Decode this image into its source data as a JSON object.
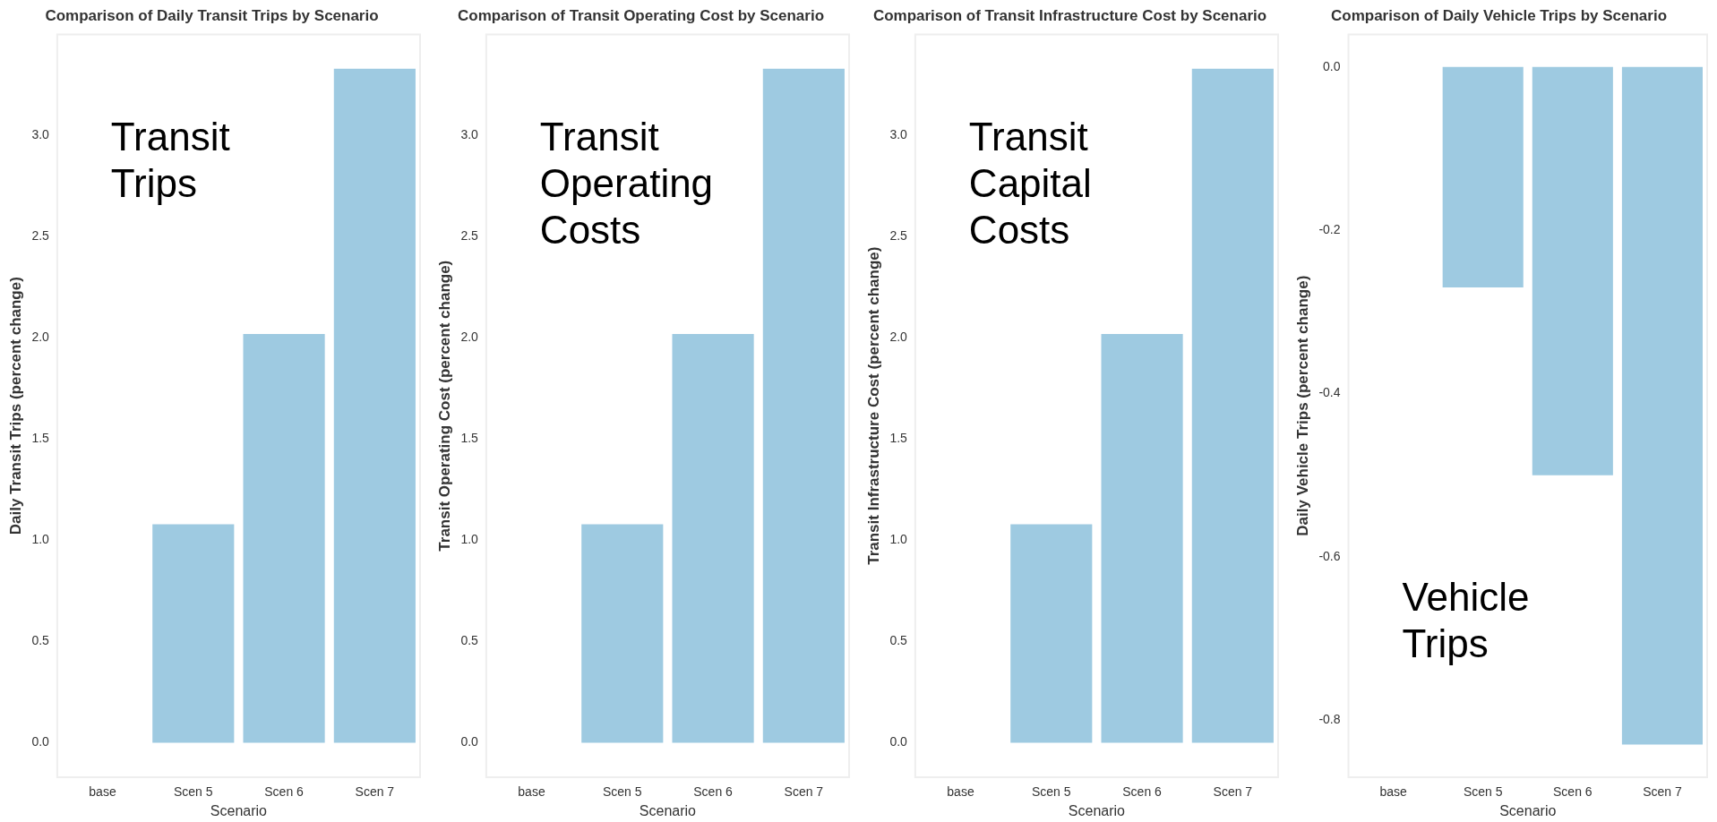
{
  "chart_data": [
    {
      "type": "bar",
      "title": "Comparison of Daily Transit Trips by Scenario",
      "xlabel": "Scenario",
      "ylabel": "Daily Transit Trips (percent change)",
      "categories": [
        "base",
        "Scen 5",
        "Scen 6",
        "Scen 7"
      ],
      "values": [
        0,
        1.08,
        2.02,
        3.33
      ],
      "color": "#9ecae1",
      "ylim": [
        -0.17,
        3.5
      ],
      "yticks": [
        {
          "value": 0,
          "label": "0.0"
        },
        {
          "value": 0.5,
          "label": "0.5"
        },
        {
          "value": 1,
          "label": "1.0"
        },
        {
          "value": 1.5,
          "label": "1.5"
        },
        {
          "value": 2,
          "label": "2.0"
        },
        {
          "value": 2.5,
          "label": "2.5"
        },
        {
          "value": 3,
          "label": "3.0"
        }
      ],
      "grid": false,
      "legend": false,
      "annotations": [
        "Transit Trips"
      ]
    },
    {
      "type": "bar",
      "title": "Comparison of Transit Operating Cost by Scenario",
      "xlabel": "Scenario",
      "ylabel": "Transit Operating Cost (percent change)",
      "categories": [
        "base",
        "Scen 5",
        "Scen 6",
        "Scen 7"
      ],
      "values": [
        0,
        1.08,
        2.02,
        3.33
      ],
      "color": "#9ecae1",
      "ylim": [
        -0.17,
        3.5
      ],
      "yticks": [
        {
          "value": 0,
          "label": "0.0"
        },
        {
          "value": 0.5,
          "label": "0.5"
        },
        {
          "value": 1,
          "label": "1.0"
        },
        {
          "value": 1.5,
          "label": "1.5"
        },
        {
          "value": 2,
          "label": "2.0"
        },
        {
          "value": 2.5,
          "label": "2.5"
        },
        {
          "value": 3,
          "label": "3.0"
        }
      ],
      "grid": false,
      "legend": false,
      "annotations": [
        "Transit Operating Costs"
      ]
    },
    {
      "type": "bar",
      "title": "Comparison of Transit Infrastructure Cost by Scenario",
      "xlabel": "Scenario",
      "ylabel": "Transit Infrastructure Cost (percent change)",
      "categories": [
        "base",
        "Scen 5",
        "Scen 6",
        "Scen 7"
      ],
      "values": [
        0,
        1.08,
        2.02,
        3.33
      ],
      "color": "#9ecae1",
      "ylim": [
        -0.17,
        3.5
      ],
      "yticks": [
        {
          "value": 0,
          "label": "0.0"
        },
        {
          "value": 0.5,
          "label": "0.5"
        },
        {
          "value": 1,
          "label": "1.0"
        },
        {
          "value": 1.5,
          "label": "1.5"
        },
        {
          "value": 2,
          "label": "2.0"
        },
        {
          "value": 2.5,
          "label": "2.5"
        },
        {
          "value": 3,
          "label": "3.0"
        }
      ],
      "grid": false,
      "legend": false,
      "annotations": [
        "Transit Capital Costs"
      ]
    },
    {
      "type": "bar",
      "title": "Comparison of Daily Vehicle Trips by Scenario",
      "xlabel": "Scenario",
      "ylabel": "Daily Vehicle Trips (percent change)",
      "categories": [
        "base",
        "Scen 5",
        "Scen 6",
        "Scen 7"
      ],
      "values": [
        0,
        -0.27,
        -0.5,
        -0.83
      ],
      "color": "#9ecae1",
      "ylim": [
        -0.87,
        0.04
      ],
      "yticks": [
        {
          "value": 0,
          "label": "0.0"
        },
        {
          "value": -0.2,
          "label": "-0.2"
        },
        {
          "value": -0.4,
          "label": "-0.4"
        },
        {
          "value": -0.6,
          "label": "-0.6"
        },
        {
          "value": -0.8,
          "label": "-0.8"
        }
      ],
      "grid": false,
      "legend": false,
      "annotations": [
        "Vehicle Trips"
      ]
    }
  ]
}
